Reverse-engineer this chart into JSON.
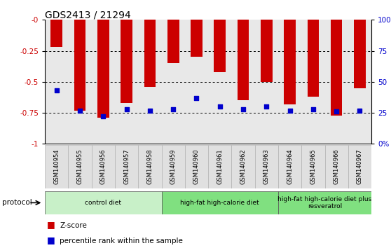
{
  "title": "GDS2413 / 21294",
  "samples": [
    "GSM140954",
    "GSM140955",
    "GSM140956",
    "GSM140957",
    "GSM140958",
    "GSM140959",
    "GSM140960",
    "GSM140961",
    "GSM140962",
    "GSM140963",
    "GSM140964",
    "GSM140965",
    "GSM140966",
    "GSM140967"
  ],
  "zscore": [
    -0.22,
    -0.73,
    -0.79,
    -0.67,
    -0.54,
    -0.35,
    -0.3,
    -0.42,
    -0.65,
    -0.5,
    -0.68,
    -0.62,
    -0.77,
    -0.55
  ],
  "percentile": [
    0.43,
    0.27,
    0.22,
    0.28,
    0.27,
    0.28,
    0.37,
    0.3,
    0.28,
    0.3,
    0.27,
    0.28,
    0.26,
    0.27
  ],
  "bar_color": "#cc0000",
  "dot_color": "#0000cc",
  "groups": [
    {
      "label": "control diet",
      "start": 0,
      "end": 5,
      "color": "#c8f0c8"
    },
    {
      "label": "high-fat high-calorie diet",
      "start": 5,
      "end": 10,
      "color": "#80e080"
    },
    {
      "label": "high-fat high-calorie diet plus\nresveratrol",
      "start": 10,
      "end": 14,
      "color": "#80e080"
    }
  ],
  "tick_label_color_left": "#cc0000",
  "tick_label_color_right": "#0000cc",
  "legend_zscore": "Z-score",
  "legend_percentile": "percentile rank within the sample"
}
